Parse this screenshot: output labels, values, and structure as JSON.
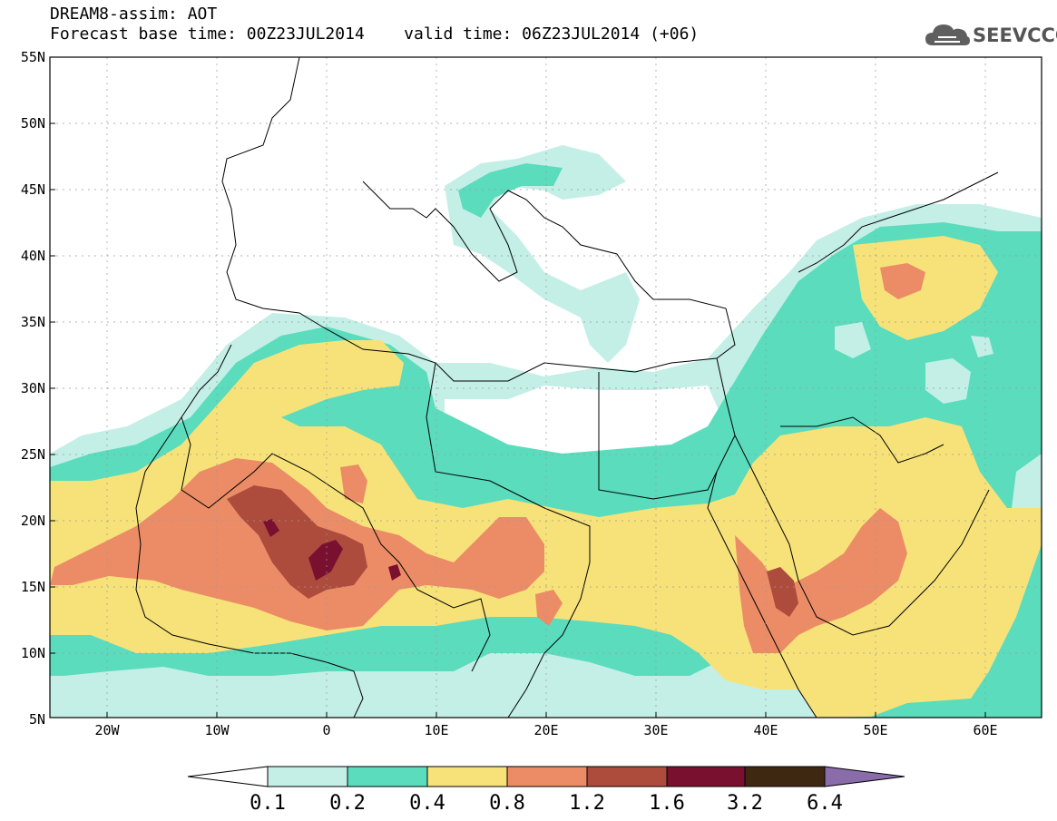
{
  "header": {
    "title": "DREAM8-assim: AOT",
    "base_label": "Forecast base time: 00Z23JUL2014",
    "valid_label": "valid time: 06Z23JUL2014 (+06)"
  },
  "logo": {
    "text": "SEEVCCC",
    "icon": "cloud-icon"
  },
  "map": {
    "lon_ticks": [
      "20W",
      "10W",
      "0",
      "10E",
      "20E",
      "30E",
      "40E",
      "50E",
      "60E"
    ],
    "lat_ticks": [
      "55N",
      "50N",
      "45N",
      "40N",
      "35N",
      "30N",
      "25N",
      "20N",
      "15N",
      "10N",
      "5N"
    ],
    "lon_range": [
      -25,
      65
    ],
    "lat_range": [
      5,
      55
    ]
  },
  "colorbar": {
    "labels": [
      "0.1",
      "0.2",
      "0.4",
      "0.8",
      "1.2",
      "1.6",
      "3.2",
      "6.4"
    ],
    "colors": [
      "#ffffff",
      "#c3efe6",
      "#5adcbd",
      "#f7e27a",
      "#eb8c66",
      "#ad4b3c",
      "#7a1030",
      "#3f2812",
      "#8a6cab"
    ]
  },
  "colors": {
    "c01": "#c3efe6",
    "c02": "#5adcbd",
    "c04": "#f7e27a",
    "c08": "#eb8c66",
    "c12": "#ad4b3c",
    "c16": "#7a1030"
  }
}
